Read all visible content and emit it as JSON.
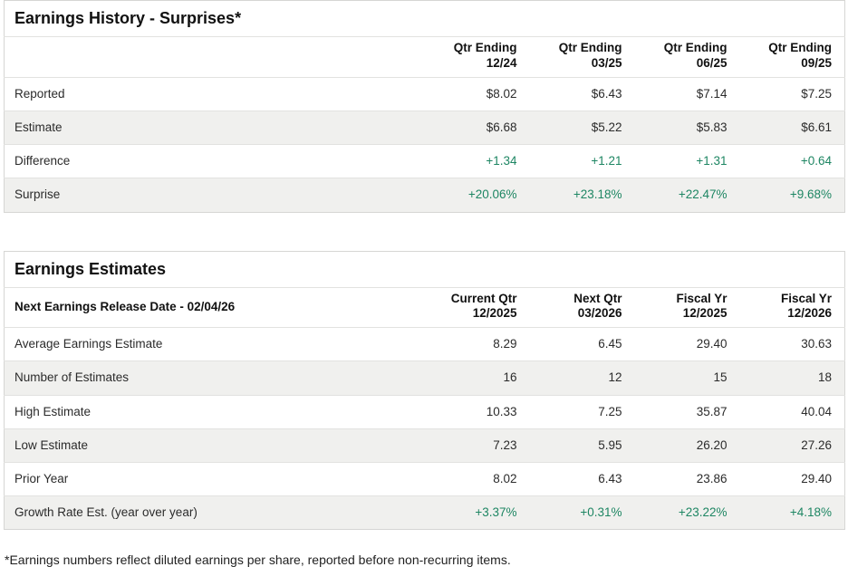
{
  "chart_data": [
    {
      "type": "table",
      "title": "Earnings History - Surprises*",
      "corner_header": "",
      "column_headers": [
        {
          "line1": "Qtr Ending",
          "line2": "12/24"
        },
        {
          "line1": "Qtr Ending",
          "line2": "03/25"
        },
        {
          "line1": "Qtr Ending",
          "line2": "06/25"
        },
        {
          "line1": "Qtr Ending",
          "line2": "09/25"
        }
      ],
      "rows": [
        {
          "label": "Reported",
          "values": [
            "$8.02",
            "$6.43",
            "$7.14",
            "$7.25"
          ],
          "value_style": "normal"
        },
        {
          "label": "Estimate",
          "values": [
            "$6.68",
            "$5.22",
            "$5.83",
            "$6.61"
          ],
          "value_style": "normal"
        },
        {
          "label": "Difference",
          "values": [
            "+1.34",
            "+1.21",
            "+1.31",
            "+0.64"
          ],
          "value_style": "positive"
        },
        {
          "label": "Surprise",
          "values": [
            "+20.06%",
            "+23.18%",
            "+22.47%",
            "+9.68%"
          ],
          "value_style": "positive"
        }
      ]
    },
    {
      "type": "table",
      "title": "Earnings Estimates",
      "corner_header": "Next Earnings Release Date - 02/04/26",
      "column_headers": [
        {
          "line1": "Current Qtr",
          "line2": "12/2025"
        },
        {
          "line1": "Next Qtr",
          "line2": "03/2026"
        },
        {
          "line1": "Fiscal Yr",
          "line2": "12/2025"
        },
        {
          "line1": "Fiscal Yr",
          "line2": "12/2026"
        }
      ],
      "rows": [
        {
          "label": "Average Earnings Estimate",
          "values": [
            "8.29",
            "6.45",
            "29.40",
            "30.63"
          ],
          "value_style": "normal"
        },
        {
          "label": "Number of Estimates",
          "values": [
            "16",
            "12",
            "15",
            "18"
          ],
          "value_style": "normal"
        },
        {
          "label": "High Estimate",
          "values": [
            "10.33",
            "7.25",
            "35.87",
            "40.04"
          ],
          "value_style": "normal"
        },
        {
          "label": "Low Estimate",
          "values": [
            "7.23",
            "5.95",
            "26.20",
            "27.26"
          ],
          "value_style": "normal"
        },
        {
          "label": "Prior Year",
          "values": [
            "8.02",
            "6.43",
            "23.86",
            "29.40"
          ],
          "value_style": "normal"
        },
        {
          "label": "Growth Rate Est. (year over year)",
          "values": [
            "+3.37%",
            "+0.31%",
            "+23.22%",
            "+4.18%"
          ],
          "value_style": "positive"
        }
      ]
    }
  ],
  "footnote": "*Earnings numbers reflect diluted earnings per share, reported before non-recurring items.",
  "colors": {
    "positive_value": "#1e8663",
    "alt_row_bg": "#f0f0ee",
    "border": "#d6d6d4",
    "text": "#1a1a1a"
  }
}
